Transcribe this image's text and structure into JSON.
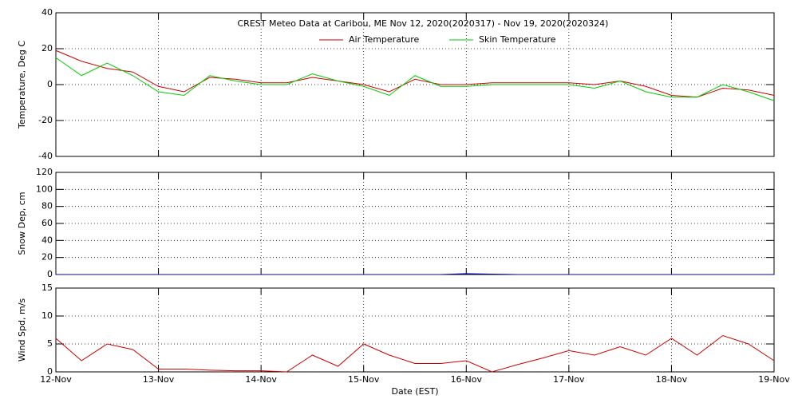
{
  "chart_data": [
    {
      "type": "line",
      "title": "CREST Meteo Data at Caribou, ME   Nov 12, 2020(2020317) - Nov 19, 2020(2020324)",
      "y_label": "Temperature, Deg C",
      "ylim": [
        -40,
        40
      ],
      "yticks": [
        -40,
        -20,
        0,
        20,
        40
      ],
      "grid": true,
      "legend": "top",
      "x": [
        12,
        12.25,
        12.5,
        12.75,
        13,
        13.25,
        13.5,
        13.75,
        14,
        14.25,
        14.5,
        14.75,
        15,
        15.25,
        15.5,
        15.75,
        16,
        16.25,
        16.5,
        16.75,
        17,
        17.25,
        17.5,
        17.75,
        18,
        18.25,
        18.5,
        18.75,
        19
      ],
      "series": [
        {
          "name": "Air Temperature",
          "color": "#cc0000",
          "values": [
            19,
            13,
            9,
            7,
            -1,
            -4,
            4,
            3,
            1,
            1,
            4,
            2,
            0,
            -4,
            3,
            0,
            0,
            1,
            1,
            1,
            1,
            0,
            2,
            -1,
            -6,
            -7,
            -2,
            -3,
            -6
          ]
        },
        {
          "name": "Skin Temperature",
          "color": "#00cc00",
          "values": [
            15,
            5,
            12,
            5,
            -4,
            -6,
            5,
            2,
            0,
            0,
            6,
            2,
            -1,
            -6,
            5,
            -1,
            -1,
            0,
            0,
            0,
            0,
            -2,
            2,
            -4,
            -7,
            -7,
            0,
            -4,
            -9
          ]
        }
      ]
    },
    {
      "type": "line",
      "y_label": "Snow Dep, cm",
      "ylim": [
        0,
        120
      ],
      "yticks": [
        0,
        20,
        40,
        60,
        80,
        100,
        120
      ],
      "grid": true,
      "x": [
        12,
        12.25,
        12.5,
        12.75,
        13,
        13.25,
        13.5,
        13.75,
        14,
        14.25,
        14.5,
        14.75,
        15,
        15.25,
        15.5,
        15.75,
        16,
        16.25,
        16.5,
        16.75,
        17,
        17.25,
        17.5,
        17.75,
        18,
        18.25,
        18.5,
        18.75,
        19
      ],
      "series": [
        {
          "color": "#0000cc",
          "values": [
            0,
            0,
            0,
            0,
            0,
            0,
            0,
            0,
            0,
            0,
            0,
            0,
            0,
            0,
            0,
            0,
            1,
            0.5,
            0,
            0,
            0,
            0,
            0,
            0,
            0,
            0,
            0,
            0,
            0
          ]
        }
      ]
    },
    {
      "type": "line",
      "y_label": "Wind Spd, m/s",
      "x_label": "Date (EST)",
      "ylim": [
        0,
        15
      ],
      "yticks": [
        0,
        5,
        10,
        15
      ],
      "grid": true,
      "xlim": [
        12,
        19
      ],
      "xticks": [
        {
          "value": 12,
          "label": "12-Nov"
        },
        {
          "value": 13,
          "label": "13-Nov"
        },
        {
          "value": 14,
          "label": "14-Nov"
        },
        {
          "value": 15,
          "label": "15-Nov"
        },
        {
          "value": 16,
          "label": "16-Nov"
        },
        {
          "value": 17,
          "label": "17-Nov"
        },
        {
          "value": 18,
          "label": "18-Nov"
        },
        {
          "value": 19,
          "label": "19-Nov"
        }
      ],
      "x": [
        12,
        12.25,
        12.5,
        12.75,
        13,
        13.25,
        13.5,
        13.75,
        14,
        14.25,
        14.5,
        14.75,
        15,
        15.25,
        15.5,
        15.75,
        16,
        16.25,
        16.5,
        16.75,
        17,
        17.25,
        17.5,
        17.75,
        18,
        18.25,
        18.5,
        18.75,
        19
      ],
      "series": [
        {
          "color": "#cc0000",
          "values": [
            6,
            2,
            5,
            4,
            0.5,
            0.5,
            0.3,
            0.2,
            0.2,
            0,
            3,
            1,
            5,
            3,
            1.5,
            1.5,
            2,
            0,
            1.3,
            2.5,
            3.8,
            3,
            4.5,
            3,
            6,
            3,
            6.5,
            5,
            2
          ]
        }
      ]
    }
  ]
}
